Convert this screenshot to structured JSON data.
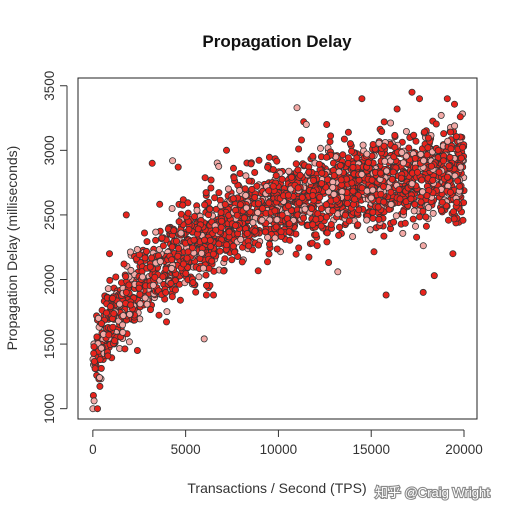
{
  "chart_data": {
    "type": "scatter",
    "title": "Propagation Delay",
    "xlabel": "Transactions / Second (TPS)",
    "ylabel": "Propagation Delay (milliseconds)",
    "xlim": [
      -800,
      20700
    ],
    "ylim": [
      920,
      3560
    ],
    "xticks": [
      0,
      5000,
      10000,
      15000,
      20000
    ],
    "yticks": [
      1000,
      1500,
      2000,
      2500,
      3000,
      3500
    ],
    "grid": false,
    "legend": "none",
    "marker_fill": "#e8231c",
    "marker_edge": "#333333",
    "marker_fill_light": "#f3a9a6",
    "trend": {
      "model": "saturating",
      "x": [
        0,
        500,
        1000,
        2000,
        3000,
        5000,
        7500,
        10000,
        12500,
        15000,
        17500,
        20000
      ],
      "y": [
        1250,
        1530,
        1690,
        1880,
        2020,
        2230,
        2440,
        2580,
        2670,
        2740,
        2790,
        2830
      ],
      "spread_sd": 170,
      "n_points": 2300
    },
    "points": [
      [
        5,
        1000
      ],
      [
        70,
        1060
      ],
      [
        250,
        1000
      ],
      [
        120,
        1310
      ],
      [
        60,
        1480
      ],
      [
        300,
        1700
      ],
      [
        900,
        2200
      ],
      [
        1800,
        2500
      ],
      [
        3200,
        2900
      ],
      [
        4300,
        2920
      ],
      [
        4600,
        2870
      ],
      [
        7200,
        3000
      ],
      [
        8400,
        2260
      ],
      [
        11000,
        3330
      ],
      [
        11500,
        3200
      ],
      [
        12600,
        3200
      ],
      [
        14500,
        3400
      ],
      [
        15700,
        3220
      ],
      [
        17200,
        3450
      ],
      [
        17600,
        3400
      ],
      [
        19100,
        3400
      ],
      [
        19800,
        3260
      ],
      [
        19400,
        2200
      ],
      [
        17800,
        1900
      ],
      [
        18400,
        2030
      ],
      [
        15800,
        1880
      ],
      [
        13200,
        2060
      ],
      [
        6000,
        1540
      ],
      [
        6500,
        1880
      ],
      [
        2400,
        1450
      ]
    ]
  },
  "watermark": "知乎 @Craig Wright"
}
